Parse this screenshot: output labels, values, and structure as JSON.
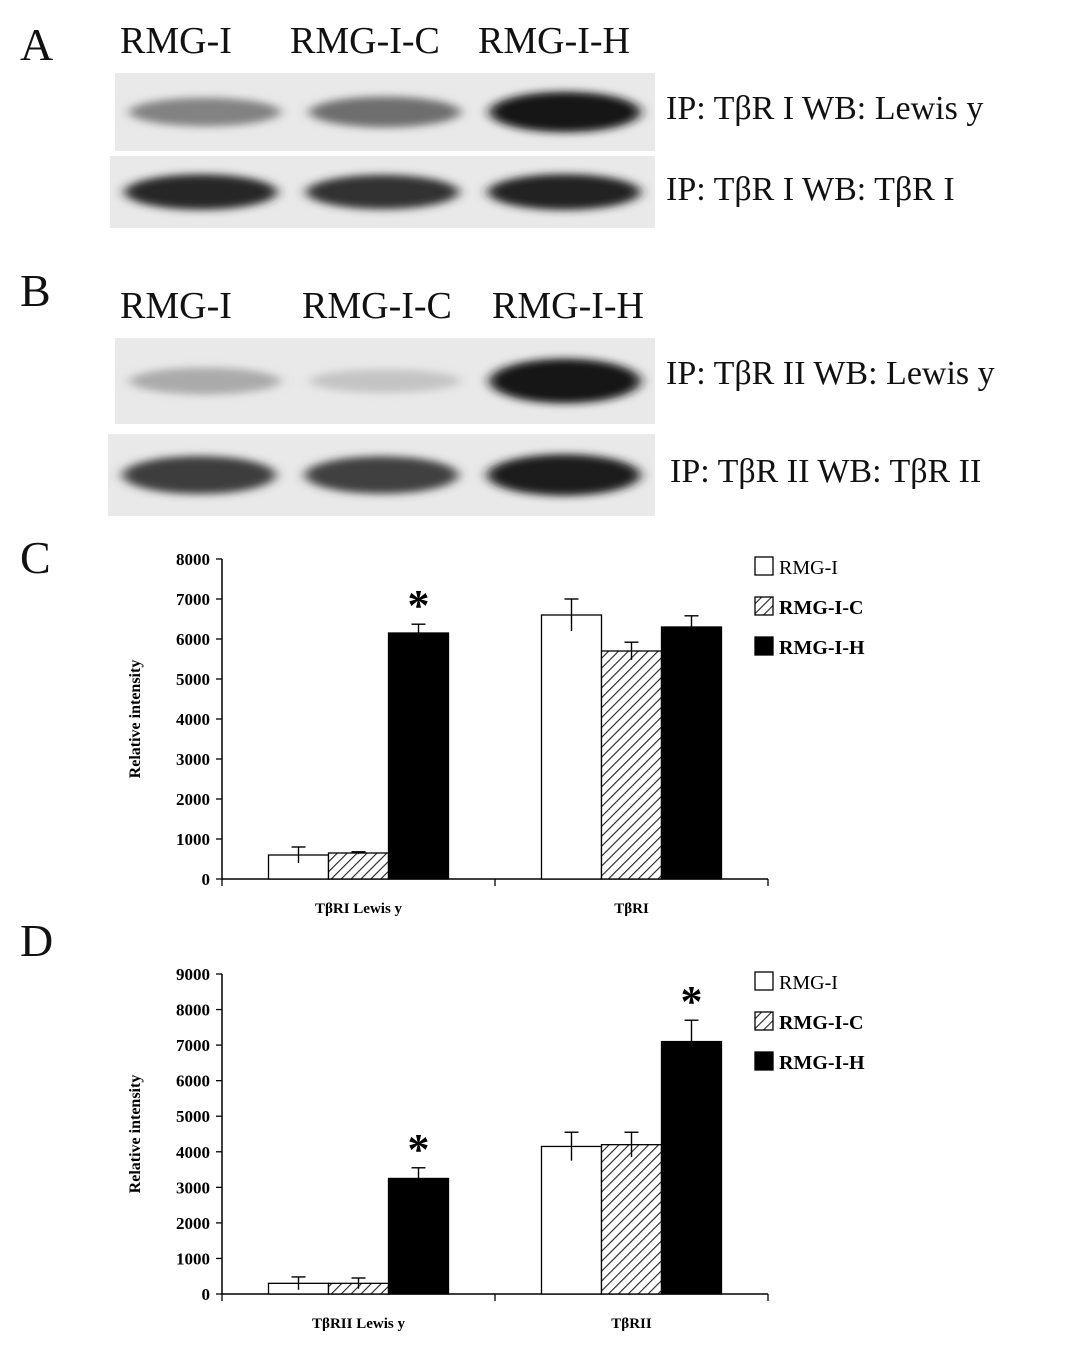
{
  "panels": {
    "A": {
      "letter": "A",
      "lanes": [
        "RMG-I",
        "RMG-I-C",
        "RMG-I-H"
      ],
      "blots": [
        {
          "label": "IP: TβR I WB: Lewis y",
          "intensity": [
            0.45,
            0.55,
            1.0
          ]
        },
        {
          "label": "IP: TβR I WB: TβR I",
          "intensity": [
            0.9,
            0.85,
            0.92
          ]
        }
      ]
    },
    "B": {
      "letter": "B",
      "lanes": [
        "RMG-I",
        "RMG-I-C",
        "RMG-I-H"
      ],
      "blots": [
        {
          "label": "IP: TβR II WB: Lewis y",
          "intensity": [
            0.25,
            0.12,
            1.0
          ]
        },
        {
          "label": "IP: TβR II WB: TβR II",
          "intensity": [
            0.8,
            0.78,
            0.95
          ]
        }
      ]
    },
    "C": {
      "letter": "C"
    },
    "D": {
      "letter": "D"
    }
  },
  "chart_data": [
    {
      "type": "bar",
      "panel": "C",
      "title": "",
      "xlabel": "",
      "ylabel": "Relative intensity",
      "ylim": [
        0,
        8000
      ],
      "yticks": [
        0,
        1000,
        2000,
        3000,
        4000,
        5000,
        6000,
        7000,
        8000
      ],
      "categories": [
        "TβRI Lewis y",
        "TβRI"
      ],
      "series": [
        {
          "name": "RMG-I",
          "values": [
            600,
            6600
          ],
          "errors": [
            200,
            400
          ],
          "fill": "white"
        },
        {
          "name": "RMG-I-C",
          "values": [
            650,
            5700
          ],
          "errors": [
            30,
            220
          ],
          "fill": "hatch"
        },
        {
          "name": "RMG-I-H",
          "values": [
            6150,
            6300
          ],
          "errors": [
            220,
            280
          ],
          "fill": "black"
        }
      ],
      "annotations": [
        {
          "text": "*",
          "category": 0,
          "series": 2
        }
      ],
      "legend_position": "top-right",
      "grid": false
    },
    {
      "type": "bar",
      "panel": "D",
      "title": "",
      "xlabel": "",
      "ylabel": "Relative intensity",
      "ylim": [
        0,
        9000
      ],
      "yticks": [
        0,
        1000,
        2000,
        3000,
        4000,
        5000,
        6000,
        7000,
        8000,
        9000
      ],
      "categories": [
        "TβRII Lewis y",
        "TβRII"
      ],
      "series": [
        {
          "name": "RMG-I",
          "values": [
            300,
            4150
          ],
          "errors": [
            180,
            400
          ],
          "fill": "white"
        },
        {
          "name": "RMG-I-C",
          "values": [
            300,
            4200
          ],
          "errors": [
            150,
            350
          ],
          "fill": "hatch"
        },
        {
          "name": "RMG-I-H",
          "values": [
            3250,
            7100
          ],
          "errors": [
            300,
            600
          ],
          "fill": "black"
        }
      ],
      "annotations": [
        {
          "text": "*",
          "category": 0,
          "series": 2
        },
        {
          "text": "*",
          "category": 1,
          "series": 2
        }
      ],
      "legend_position": "top-right",
      "grid": false
    }
  ]
}
